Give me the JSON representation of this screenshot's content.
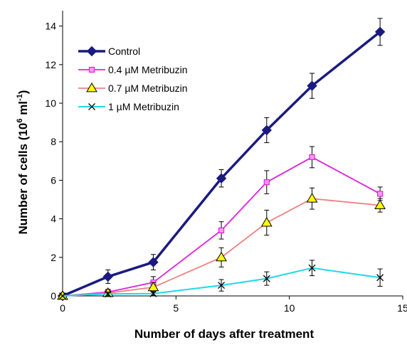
{
  "chart_data": {
    "type": "line",
    "title": "",
    "xlabel": "Number of days after treatment",
    "ylabel_main": "Number of cells (10",
    "ylabel_sup1": "6",
    "ylabel_mid": " ml",
    "ylabel_sup2": "-1",
    "ylabel_end": ")",
    "xlim": [
      0,
      15
    ],
    "ylim": [
      0,
      14.8
    ],
    "xticks": [
      "0",
      "5",
      "10",
      "15"
    ],
    "yticks": [
      "0",
      "2",
      "4",
      "6",
      "8",
      "10",
      "12",
      "14"
    ],
    "grid": false,
    "legend_position": "top-left",
    "x": [
      0,
      2,
      4,
      7,
      9,
      11,
      14
    ],
    "series": [
      {
        "name": "Control",
        "color": "#1a1a80",
        "marker": "diamond",
        "values": [
          0,
          1.0,
          1.75,
          6.1,
          8.6,
          10.9,
          13.7
        ],
        "errors": [
          0,
          0.35,
          0.4,
          0.45,
          0.65,
          0.65,
          0.7
        ]
      },
      {
        "name": "0.4 µM Metribuzin",
        "color": "#dd22dd",
        "marker": "square",
        "values": [
          0,
          0.2,
          0.7,
          3.4,
          5.9,
          7.2,
          5.3
        ],
        "errors": [
          0,
          0.15,
          0.3,
          0.45,
          0.6,
          0.55,
          0.35
        ]
      },
      {
        "name": "0.7 µM Metribuzin",
        "color": "#f08080",
        "marker": "triangle",
        "values": [
          0,
          0.15,
          0.45,
          2.0,
          3.8,
          5.05,
          4.7
        ],
        "errors": [
          0,
          0.1,
          0.25,
          0.5,
          0.65,
          0.55,
          0.35
        ]
      },
      {
        "name": "1 µM Metribuzin",
        "color": "#22d8e8",
        "marker": "x",
        "values": [
          0,
          0.1,
          0.12,
          0.55,
          0.9,
          1.45,
          0.95
        ],
        "errors": [
          0,
          0.1,
          0.1,
          0.3,
          0.35,
          0.4,
          0.45
        ]
      }
    ]
  }
}
